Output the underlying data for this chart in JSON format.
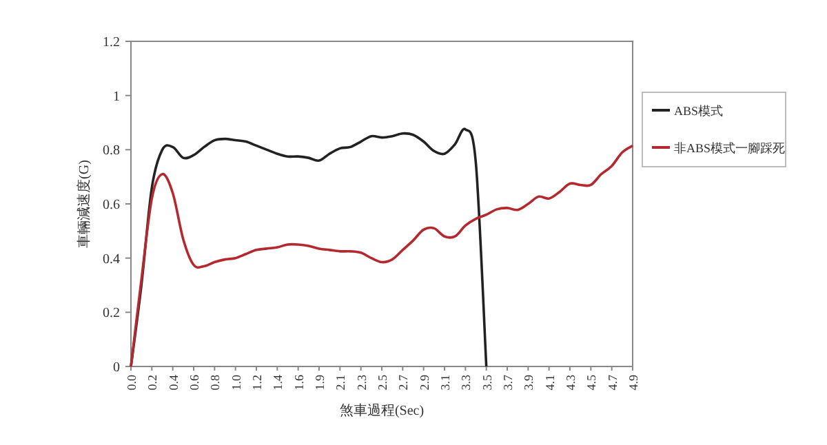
{
  "chart_data": {
    "type": "line",
    "xlabel": "煞車過程(Sec)",
    "ylabel": "車輛減速度(G)",
    "categories": [
      "0.0",
      null,
      "0.2",
      null,
      "0.4",
      null,
      "0.6",
      null,
      "0.8",
      null,
      "1.0",
      null,
      "1.2",
      null,
      "1.4",
      null,
      "1.6",
      null,
      "1.9",
      null,
      "2.1",
      null,
      "2.3",
      null,
      "2.5",
      null,
      "2.7",
      null,
      "2.9",
      null,
      "3.1",
      null,
      "3.3",
      null,
      "3.5",
      null,
      "3.7",
      null,
      "3.9",
      null,
      "4.1",
      null,
      "4.3",
      null,
      "4.5",
      null,
      "4.7",
      null,
      "4.9"
    ],
    "series": [
      {
        "name": "ABS模式",
        "color": "#222222",
        "values": [
          0,
          0.3,
          0.66,
          0.8,
          0.81,
          0.77,
          0.78,
          0.81,
          0.835,
          0.84,
          0.835,
          0.83,
          0.815,
          0.8,
          0.785,
          0.775,
          0.775,
          0.77,
          0.76,
          0.785,
          0.805,
          0.81,
          0.83,
          0.85,
          0.845,
          0.85,
          0.86,
          0.855,
          0.83,
          0.795,
          0.785,
          0.82,
          0.875,
          0.75,
          0,
          null,
          null,
          null,
          null,
          null,
          null,
          null,
          null,
          null,
          null,
          null,
          null,
          null,
          null
        ]
      },
      {
        "name": "非ABS模式一腳踩死",
        "color": "#b5282e",
        "values": [
          0,
          0.32,
          0.62,
          0.71,
          0.64,
          0.47,
          0.375,
          0.37,
          0.385,
          0.395,
          0.4,
          0.415,
          0.43,
          0.435,
          0.44,
          0.45,
          0.45,
          0.445,
          0.435,
          0.43,
          0.425,
          0.425,
          0.42,
          0.4,
          0.385,
          0.395,
          0.43,
          0.465,
          0.505,
          0.51,
          0.48,
          0.48,
          0.52,
          0.545,
          0.56,
          0.58,
          0.585,
          0.578,
          0.6,
          0.627,
          0.62,
          0.644,
          0.675,
          0.67,
          0.67,
          0.71,
          0.74,
          0.79,
          0.815
        ]
      }
    ],
    "ylim": [
      0,
      1.2
    ],
    "yticks": [
      0,
      0.2,
      0.4,
      0.6,
      0.8,
      1,
      1.2
    ],
    "legend": "right",
    "grid": false
  }
}
